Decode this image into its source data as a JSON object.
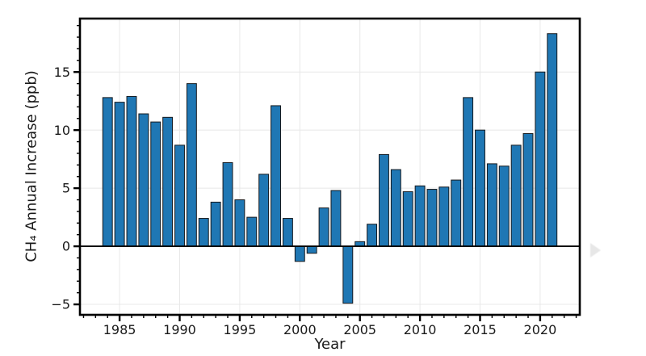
{
  "page": {
    "background": "#ffffff"
  },
  "chart_data": {
    "type": "bar",
    "title": "",
    "xlabel": "Year",
    "ylabel": "CH₄ Annual Increase (ppb)",
    "categories": [
      1984,
      1985,
      1986,
      1987,
      1988,
      1989,
      1990,
      1991,
      1992,
      1993,
      1994,
      1995,
      1996,
      1997,
      1998,
      1999,
      2000,
      2001,
      2002,
      2003,
      2004,
      2005,
      2006,
      2007,
      2008,
      2009,
      2010,
      2011,
      2012,
      2013,
      2014,
      2015,
      2016,
      2017,
      2018,
      2019,
      2020,
      2021
    ],
    "values": [
      12.8,
      12.4,
      12.9,
      11.4,
      10.7,
      11.1,
      8.7,
      14.0,
      2.4,
      3.8,
      7.2,
      4.0,
      2.5,
      6.2,
      12.1,
      2.4,
      -1.3,
      -0.6,
      3.3,
      4.8,
      -4.9,
      0.4,
      1.9,
      7.9,
      6.6,
      4.7,
      5.2,
      4.9,
      5.1,
      5.7,
      12.8,
      10.0,
      7.1,
      6.9,
      8.7,
      9.7,
      15.0,
      18.3
    ],
    "bar_width": 0.8,
    "xlim": [
      1981.7,
      2023.3
    ],
    "ylim": [
      -5.9,
      19.6
    ],
    "xticks": {
      "values": [
        1985,
        1990,
        1995,
        2000,
        2005,
        2010,
        2015,
        2020
      ],
      "labels": [
        "1985",
        "1990",
        "1995",
        "2000",
        "2005",
        "2010",
        "2015",
        "2020"
      ]
    },
    "yticks": {
      "values": [
        -5,
        0,
        5,
        10,
        15
      ],
      "labels": [
        "−5",
        "0",
        "5",
        "10",
        "15"
      ]
    },
    "minor_xticks": {
      "start": 1982,
      "end": 2023,
      "step": 1
    },
    "minor_yticks": {
      "start": -5,
      "end": 19,
      "step": 1
    },
    "grid": true,
    "zero_line": true,
    "legend": "none",
    "colors": {
      "bar_fill": "#1f77b4",
      "bar_edge": "#16191d",
      "grid": "#e8e8e8",
      "axis": "#000000",
      "tick_text": "#1a1a1a",
      "background": "#ffffff"
    }
  },
  "decor": {
    "next_arrow_color": "#e7e7e7"
  }
}
